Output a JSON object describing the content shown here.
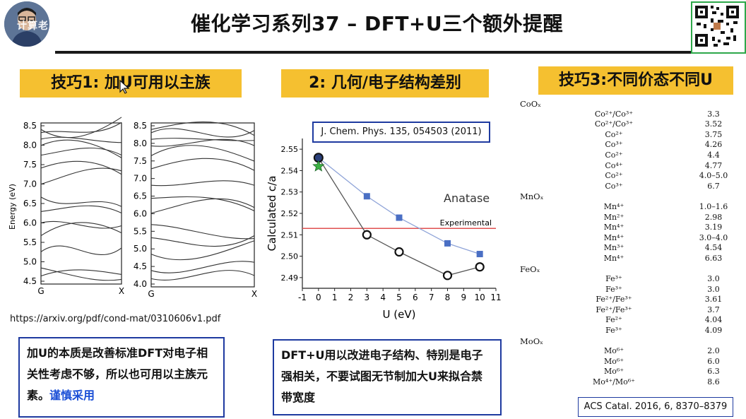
{
  "header": {
    "title": "催化学习系列37 – DFT+U三个额外提醒",
    "watermark": "计算老司机 bilibili"
  },
  "tips": {
    "tip1": "技巧1: 加U可用以主族",
    "tip2": "2: 几何/电子结构差别",
    "tip3": "技巧3:不同价态不同U"
  },
  "panel1": {
    "y_label": "Energy (eV)",
    "y_ticks": [
      "8.5",
      "8.0",
      "7.5",
      "7.0",
      "6.5",
      "6.0",
      "5.5",
      "5.0",
      "4.5"
    ],
    "y_ticks_right": [
      "8.5",
      "8.0",
      "7.5",
      "7.0",
      "6.5",
      "6.0",
      "5.5",
      "5.0",
      "4.5",
      "4.0"
    ],
    "x_ticks": [
      "G",
      "X"
    ],
    "source": "https://arxiv.org/pdf/cond-mat/0310606v1.pdf",
    "note_main": "加U的本质是改善标准DFT对电子相关性考虑不够，所以也可用以主族元素。",
    "note_accent": "谨慎采用"
  },
  "panel2": {
    "reference": "J. Chem. Phys. 135, 054503 (2011)",
    "chart_data": {
      "type": "line",
      "xlabel": "U (eV)",
      "ylabel": "Calculated c/a",
      "xlim": [
        -1,
        11
      ],
      "ylim": [
        2.485,
        2.555
      ],
      "x_ticks": [
        "-1",
        "0",
        "1",
        "2",
        "3",
        "4",
        "5",
        "6",
        "7",
        "8",
        "9",
        "10",
        "11"
      ],
      "y_ticks": [
        "2.55",
        "2.54",
        "2.53",
        "2.52",
        "2.51",
        "2.50",
        "2.49"
      ],
      "annotation": "Anatase",
      "reference_line": {
        "label": "Experimental",
        "y": 2.513
      },
      "series": [
        {
          "marker": "square",
          "color": "#4a6fc4",
          "x": [
            0,
            3,
            5,
            8,
            10
          ],
          "y": [
            2.546,
            2.528,
            2.518,
            2.506,
            2.501
          ]
        },
        {
          "marker": "circle",
          "color": "#111111",
          "x": [
            0,
            3,
            5,
            8,
            10
          ],
          "y": [
            2.546,
            2.51,
            2.502,
            2.491,
            2.495
          ]
        },
        {
          "marker": "star",
          "color": "#3cb043",
          "x": [
            0
          ],
          "y": [
            2.542
          ]
        }
      ]
    },
    "note": "DFT+U用以改进电子结构、特别是电子强相关，不要试图无节制加大U来拟合禁带宽度"
  },
  "panel3": {
    "reference": "ACS Catal. 2016, 6, 8370–8379",
    "groups": [
      {
        "name": "CoOₓ",
        "rows": [
          {
            "species": "Co²⁺/Co³⁺",
            "value": "3.3"
          },
          {
            "species": "Co²⁺/Co³⁺",
            "value": "3.52"
          },
          {
            "species": "Co²⁺",
            "value": "3.75"
          },
          {
            "species": "Co³⁺",
            "value": "4.26"
          },
          {
            "species": "Co²⁺",
            "value": "4.4"
          },
          {
            "species": "Co⁴⁺",
            "value": "4.77"
          },
          {
            "species": "Co²⁺",
            "value": "4.0–5.0"
          },
          {
            "species": "Co³⁺",
            "value": "6.7"
          }
        ]
      },
      {
        "name": "MnOₓ",
        "rows": [
          {
            "species": "Mn⁴⁺",
            "value": "1.0–1.6"
          },
          {
            "species": "Mn²⁺",
            "value": "2.98"
          },
          {
            "species": "Mn⁴⁺",
            "value": "3.19"
          },
          {
            "species": "Mn⁴⁺",
            "value": "3.0–4.0"
          },
          {
            "species": "Mn³⁺",
            "value": "4.54"
          },
          {
            "species": "Mn⁴⁺",
            "value": "6.63"
          }
        ]
      },
      {
        "name": "FeOₓ",
        "rows": [
          {
            "species": "Fe³⁺",
            "value": "3.0"
          },
          {
            "species": "Fe³⁺",
            "value": "3.0"
          },
          {
            "species": "Fe²⁺/Fe³⁺",
            "value": "3.61"
          },
          {
            "species": "Fe²⁺/Fe³⁺",
            "value": "3.7"
          },
          {
            "species": "Fe²⁺",
            "value": "4.04"
          },
          {
            "species": "Fe³⁺",
            "value": "4.09"
          }
        ]
      },
      {
        "name": "MoOₓ",
        "rows": [
          {
            "species": "Mo⁶⁺",
            "value": "2.0"
          },
          {
            "species": "Mo⁶⁺",
            "value": "6.0"
          },
          {
            "species": "Mo⁶⁺",
            "value": "6.3"
          },
          {
            "species": "Mo⁴⁺/Mo⁶⁺",
            "value": "8.6"
          }
        ]
      }
    ]
  }
}
